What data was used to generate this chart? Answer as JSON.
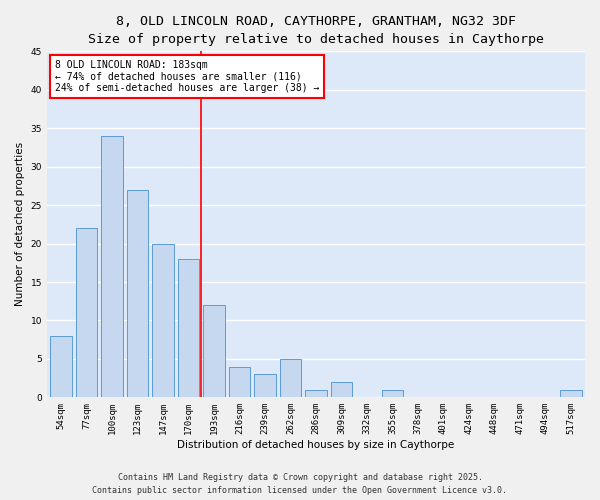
{
  "title_line1": "8, OLD LINCOLN ROAD, CAYTHORPE, GRANTHAM, NG32 3DF",
  "title_line2": "Size of property relative to detached houses in Caythorpe",
  "xlabel": "Distribution of detached houses by size in Caythorpe",
  "ylabel": "Number of detached properties",
  "categories": [
    "54sqm",
    "77sqm",
    "100sqm",
    "123sqm",
    "147sqm",
    "170sqm",
    "193sqm",
    "216sqm",
    "239sqm",
    "262sqm",
    "286sqm",
    "309sqm",
    "332sqm",
    "355sqm",
    "378sqm",
    "401sqm",
    "424sqm",
    "448sqm",
    "471sqm",
    "494sqm",
    "517sqm"
  ],
  "values": [
    8,
    22,
    34,
    27,
    20,
    18,
    12,
    4,
    3,
    5,
    1,
    2,
    0,
    1,
    0,
    0,
    0,
    0,
    0,
    0,
    1
  ],
  "bar_color": "#c5d8f0",
  "bar_edge_color": "#5b9bd5",
  "background_color": "#dde9f8",
  "fig_background_color": "#f0f0f0",
  "grid_color": "#ffffff",
  "annotation_box_text_line1": "8 OLD LINCOLN ROAD: 183sqm",
  "annotation_box_text_line2": "← 74% of detached houses are smaller (116)",
  "annotation_box_text_line3": "24% of semi-detached houses are larger (38) →",
  "red_line_index": 6,
  "ylim": [
    0,
    45
  ],
  "yticks": [
    0,
    5,
    10,
    15,
    20,
    25,
    30,
    35,
    40,
    45
  ],
  "footer_line1": "Contains HM Land Registry data © Crown copyright and database right 2025.",
  "footer_line2": "Contains public sector information licensed under the Open Government Licence v3.0.",
  "title_fontsize": 9.5,
  "subtitle_fontsize": 8.5,
  "axis_label_fontsize": 7.5,
  "tick_fontsize": 6.5,
  "annotation_fontsize": 7,
  "footer_fontsize": 6
}
